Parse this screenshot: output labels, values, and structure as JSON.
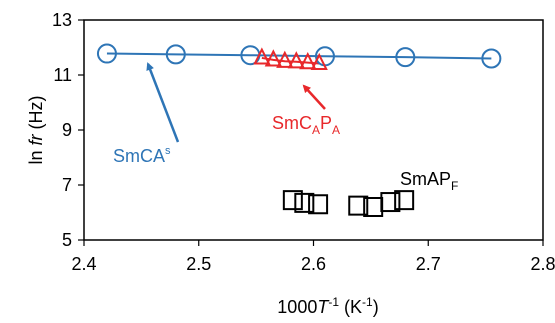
{
  "chart_data": {
    "type": "scatter",
    "xlabel": {
      "main": "1000",
      "italic": "T",
      "sup": "-1",
      "unit": " (K",
      "unit_sup": "-1",
      "close": ")"
    },
    "ylabel": {
      "main": "ln ",
      "italic": "fr",
      "unit": " (Hz)"
    },
    "xlim": [
      2.4,
      2.8
    ],
    "ylim": [
      5,
      13
    ],
    "xticks": [
      "2.4",
      "2.5",
      "2.6",
      "2.7",
      "2.8"
    ],
    "yticks": [
      "5",
      "7",
      "9",
      "11",
      "13"
    ],
    "grid": false,
    "series": [
      {
        "label": {
          "base": "SmCA",
          "sup": "s"
        },
        "marker": "circle",
        "color": "#2e75b6",
        "trendline": true,
        "x": [
          2.42,
          2.48,
          2.545,
          2.61,
          2.68,
          2.755
        ],
        "y": [
          11.78,
          11.75,
          11.72,
          11.68,
          11.65,
          11.6
        ]
      },
      {
        "label": {
          "base": "SmC",
          "sub1": "A",
          "mid": "P",
          "sub2": "A"
        },
        "marker": "triangle",
        "color": "#e8282b",
        "trendline": true,
        "x": [
          2.555,
          2.565,
          2.575,
          2.585,
          2.595,
          2.605
        ],
        "y": [
          11.62,
          11.55,
          11.5,
          11.48,
          11.45,
          11.42
        ]
      },
      {
        "label": {
          "base": "SmAP",
          "sub": "F"
        },
        "marker": "square",
        "color": "#000000",
        "trendline": false,
        "x": [
          2.582,
          2.592,
          2.604,
          2.639,
          2.652,
          2.667,
          2.679
        ],
        "y": [
          6.45,
          6.35,
          6.3,
          6.25,
          6.2,
          6.38,
          6.45
        ]
      }
    ]
  }
}
